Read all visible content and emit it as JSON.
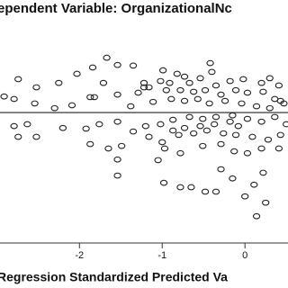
{
  "chart_data": {
    "type": "scatter",
    "title": "ependent Variable: OrganizationalNc",
    "x_label": "Regression Standardized Predicted Va",
    "xlim": [
      -2.96,
      0.52
    ],
    "xticks": [
      -2,
      -1,
      0
    ],
    "ylim": [
      -4.14,
      2.43
    ],
    "hline": 0,
    "color": "#222222",
    "x": [
      -1.67,
      -1.84,
      -1.54,
      -1.35,
      -2.03,
      -0.99,
      -0.42,
      -0.4,
      -0.82,
      -0.73,
      -0.54,
      -1.02,
      -1.22,
      -0.91,
      -0.67,
      -0.35,
      -0.18,
      -0.02,
      0.2,
      0.3,
      0.41,
      -2.52,
      -2.25,
      -1.71,
      -2.74,
      -2.91,
      -2.79,
      -2.54,
      -1.87,
      -1.82,
      -1.54,
      -1.29,
      -1.22,
      -1.16,
      -0.95,
      -0.78,
      -0.62,
      -0.48,
      -0.29,
      -0.11,
      0.03,
      0.22,
      0.36,
      0.47,
      -2.3,
      -2.09,
      -1.38,
      -1.11,
      -0.89,
      -0.73,
      -0.57,
      -0.43,
      -0.24,
      -0.04,
      0.14,
      0.3,
      0.43,
      -2.79,
      -2.63,
      -2.52,
      -2.74,
      -2.2,
      -1.92,
      -1.76,
      -1.54,
      -1.35,
      -1.2,
      -1.02,
      -0.87,
      -0.67,
      -0.51,
      -0.35,
      -0.15,
      0.03,
      0.2,
      0.36,
      0.5,
      -1.65,
      -1.49,
      -1.87,
      -1.16,
      -1.0,
      -0.8,
      -0.62,
      -0.46,
      -0.26,
      -0.11,
      0.09,
      0.28,
      0.43,
      -0.97,
      -0.78,
      -0.51,
      -0.29,
      -0.13,
      0.03,
      0.2,
      0.41,
      -1.54,
      -1.54,
      -0.98,
      -0.78,
      -0.65,
      -0.48,
      -0.35,
      -0.15,
      0.11,
      0.22,
      0.0,
      0.14,
      0.25,
      -0.29,
      -1.05,
      -0.18,
      -0.08,
      -0.37,
      -0.54,
      -0.73,
      -0.87
    ],
    "y": [
      1.74,
      1.43,
      1.51,
      1.49,
      1.23,
      1.34,
      1.57,
      1.29,
      1.23,
      1.14,
      1.09,
      1.0,
      0.94,
      0.94,
      0.94,
      0.86,
      1.0,
      1.06,
      0.94,
      1.09,
      0.86,
      0.8,
      0.94,
      0.94,
      1.06,
      0.51,
      0.43,
      0.29,
      0.49,
      0.49,
      0.57,
      0.63,
      0.8,
      0.8,
      0.71,
      0.71,
      0.66,
      0.71,
      0.57,
      0.71,
      0.63,
      0.66,
      0.43,
      0.29,
      0.14,
      0.23,
      0.2,
      0.34,
      0.43,
      0.37,
      0.43,
      0.29,
      0.37,
      0.29,
      0.2,
      0.14,
      0.37,
      -0.43,
      -0.37,
      -0.77,
      -0.77,
      -0.49,
      -0.51,
      -0.37,
      -0.29,
      -0.6,
      -0.43,
      -0.37,
      -0.23,
      -0.14,
      -0.2,
      -0.14,
      -0.09,
      -0.2,
      -0.29,
      -0.14,
      -0.37,
      -1.14,
      -1.06,
      -1.0,
      -0.77,
      -0.94,
      -0.71,
      -0.66,
      -0.57,
      -0.66,
      -0.71,
      -0.77,
      -0.86,
      -0.71,
      -1.14,
      -1.29,
      -1.06,
      -1.0,
      -1.23,
      -1.29,
      -1.14,
      -1.14,
      -1.49,
      -2.0,
      -2.23,
      -2.37,
      -2.37,
      -2.51,
      -2.51,
      -2.09,
      -2.29,
      -1.91,
      -2.66,
      -3.29,
      -2.86,
      -1.8,
      -1.51,
      -0.29,
      -0.43,
      -0.37,
      -0.43,
      -0.49,
      -0.57
    ]
  }
}
